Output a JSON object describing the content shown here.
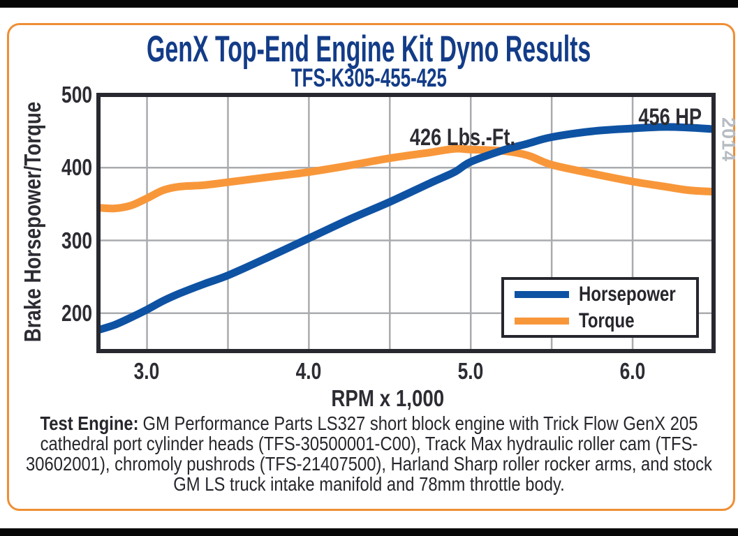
{
  "header": {
    "title": "GenX Top-End Engine Kit Dyno Results",
    "subtitle": "TFS-K305-455-425"
  },
  "watermark": "2014",
  "chart_data": {
    "type": "line",
    "title": "GenX Top-End Engine Kit Dyno Results",
    "subtitle": "TFS-K305-455-425",
    "xlabel": "RPM x 1,000",
    "ylabel": "Brake Horsepower/Torque",
    "xlim": [
      2.7,
      6.5
    ],
    "ylim": [
      148,
      500
    ],
    "grid": true,
    "x_gridlines": [
      3.0,
      3.5,
      4.0,
      4.5,
      5.0,
      5.5,
      6.0
    ],
    "y_gridlines": [
      200,
      300,
      400
    ],
    "xticks": [
      {
        "value": 3.0,
        "label": "3.0"
      },
      {
        "value": 4.0,
        "label": "4.0"
      },
      {
        "value": 5.0,
        "label": "5.0"
      },
      {
        "value": 6.0,
        "label": "6.0"
      }
    ],
    "yticks": [
      {
        "value": 500,
        "label": "500"
      },
      {
        "value": 400,
        "label": "400"
      },
      {
        "value": 300,
        "label": "300"
      },
      {
        "value": 200,
        "label": "200"
      }
    ],
    "x": [
      2.7,
      2.8,
      2.9,
      3.0,
      3.1,
      3.2,
      3.35,
      3.5,
      3.75,
      4.0,
      4.25,
      4.5,
      4.75,
      4.9,
      5.0,
      5.2,
      5.35,
      5.5,
      5.75,
      6.0,
      6.2,
      6.35,
      6.5
    ],
    "series": [
      {
        "name": "Horsepower",
        "color": "#0e52a3",
        "peak_label": "456 HP",
        "values": [
          177,
          184,
          194,
          205,
          217,
          227,
          240,
          252,
          277,
          303,
          329,
          353,
          379,
          394,
          408,
          424,
          433,
          442,
          450,
          454,
          456,
          455,
          453
        ]
      },
      {
        "name": "Torque",
        "color": "#f8973a",
        "peak_label": "426 Lbs.-Ft.",
        "values": [
          345,
          344,
          348,
          358,
          369,
          374,
          376,
          380,
          387,
          394,
          403,
          413,
          421,
          426,
          425,
          423,
          417,
          404,
          392,
          381,
          374,
          369,
          367
        ]
      }
    ],
    "annotations": [
      {
        "text": "456 HP",
        "series": "Horsepower"
      },
      {
        "text": "426 Lbs.-Ft.",
        "series": "Torque"
      }
    ],
    "legend": {
      "position": "inside-bottom-right"
    },
    "colors": {
      "grid": "#a9abae",
      "plot_border": "#282830",
      "axis_text": "#2c2c33",
      "title_navy": "#133c88",
      "frame_orange": "#ef8e33",
      "watermark_gray": "#b7bcc2"
    }
  },
  "footer": {
    "label": "Test Engine:",
    "text": "GM Performance Parts LS327 short block engine with Trick Flow GenX 205 cathedral port cylinder heads (TFS-30500001-C00), Track Max hydraulic roller cam (TFS-30602001), chromoly pushrods (TFS-21407500), Harland Sharp roller rocker arms, and stock GM LS truck intake manifold and 78mm throttle body."
  }
}
